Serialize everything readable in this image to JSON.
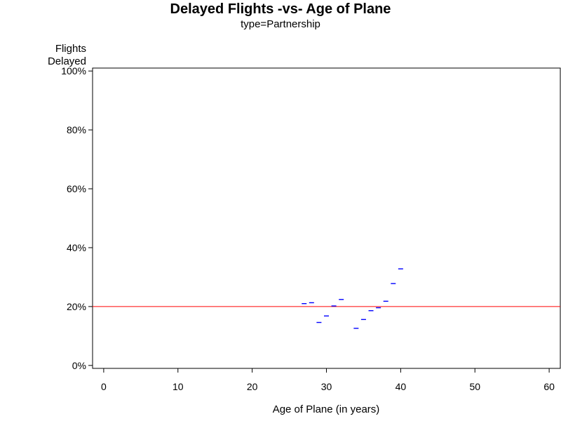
{
  "chart_data": {
    "type": "scatter",
    "title": "Delayed Flights -vs- Age of Plane",
    "subtitle": "type=Partnership",
    "xlabel": "Age of Plane (in years)",
    "ylabel_lines": [
      "Flights",
      "Delayed"
    ],
    "xlim": [
      -1.5,
      61.5
    ],
    "ylim": [
      -1,
      101
    ],
    "x_ticks": [
      0,
      10,
      20,
      30,
      40,
      50,
      60
    ],
    "y_ticks": [
      0,
      20,
      40,
      60,
      80,
      100
    ],
    "y_tick_labels": [
      "0%",
      "20%",
      "40%",
      "60%",
      "80%",
      "100%"
    ],
    "reference_line": {
      "y": 20,
      "color": "#ff0000"
    },
    "marker_color": "#0000ff",
    "marker": "dash",
    "points": [
      {
        "x": 27,
        "y": 21.0
      },
      {
        "x": 28,
        "y": 21.3
      },
      {
        "x": 29,
        "y": 14.6
      },
      {
        "x": 30,
        "y": 16.8
      },
      {
        "x": 31,
        "y": 20.2
      },
      {
        "x": 32,
        "y": 22.4
      },
      {
        "x": 34,
        "y": 12.6
      },
      {
        "x": 35,
        "y": 15.6
      },
      {
        "x": 36,
        "y": 18.6
      },
      {
        "x": 37,
        "y": 19.6
      },
      {
        "x": 38,
        "y": 21.8
      },
      {
        "x": 39,
        "y": 27.8
      },
      {
        "x": 40,
        "y": 32.8
      }
    ]
  }
}
